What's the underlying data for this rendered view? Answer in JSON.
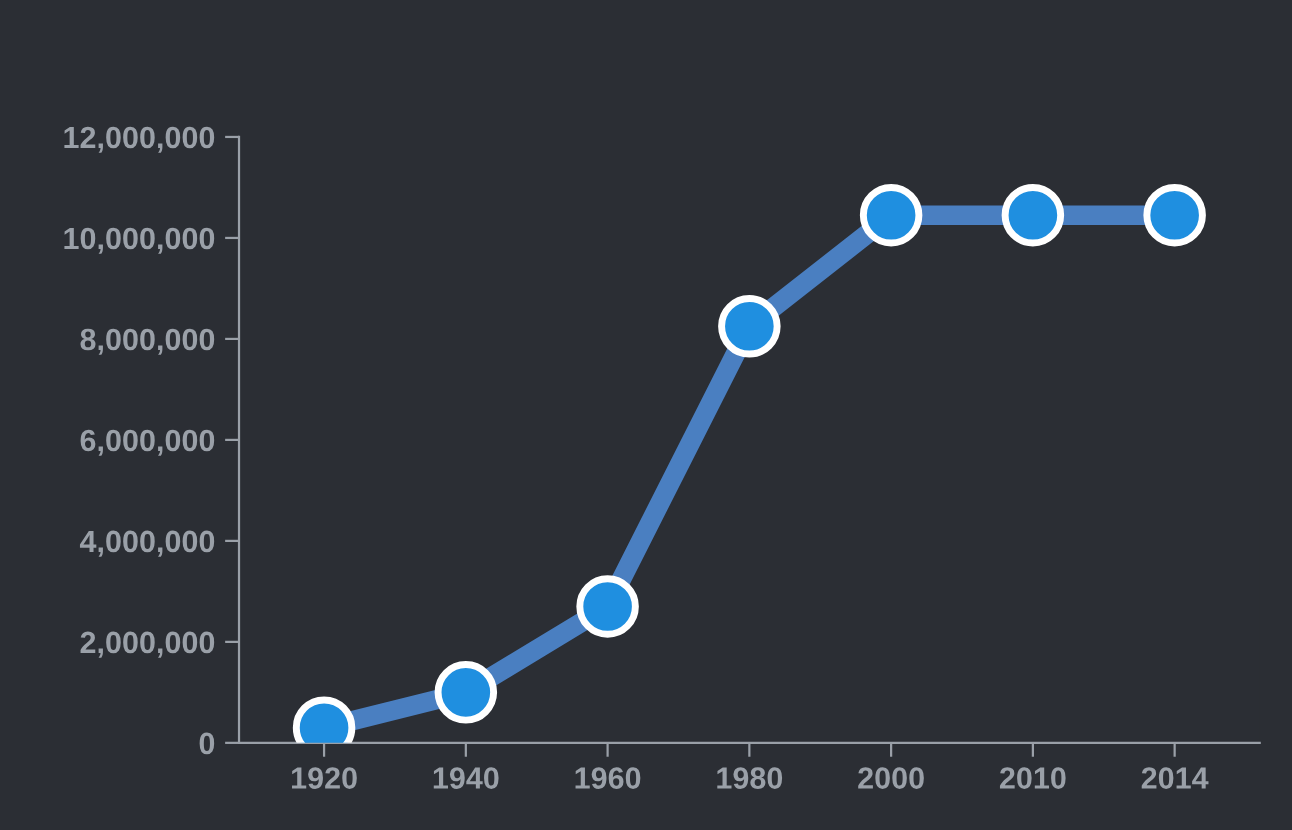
{
  "chart_data": {
    "type": "line",
    "categories": [
      "1920",
      "1940",
      "1960",
      "1980",
      "2000",
      "2010",
      "2014"
    ],
    "series": [
      {
        "color": "#4a7fc1",
        "values": [
          300000,
          1000000,
          2700000,
          8250000,
          10450000,
          10450000,
          10450000
        ]
      }
    ],
    "ylim": [
      0,
      12000000
    ],
    "yticks": [
      {
        "value": 0,
        "label": "0"
      },
      {
        "value": 2000000,
        "label": "2,000,000"
      },
      {
        "value": 4000000,
        "label": "4,000,000"
      },
      {
        "value": 6000000,
        "label": "6,000,000"
      },
      {
        "value": 8000000,
        "label": "8,000,000"
      },
      {
        "value": 10000000,
        "label": "10,000,000"
      },
      {
        "value": 12000000,
        "label": "12,000,000"
      }
    ],
    "grid": false,
    "legend": false,
    "marker": "circle",
    "line_style": "solid"
  }
}
